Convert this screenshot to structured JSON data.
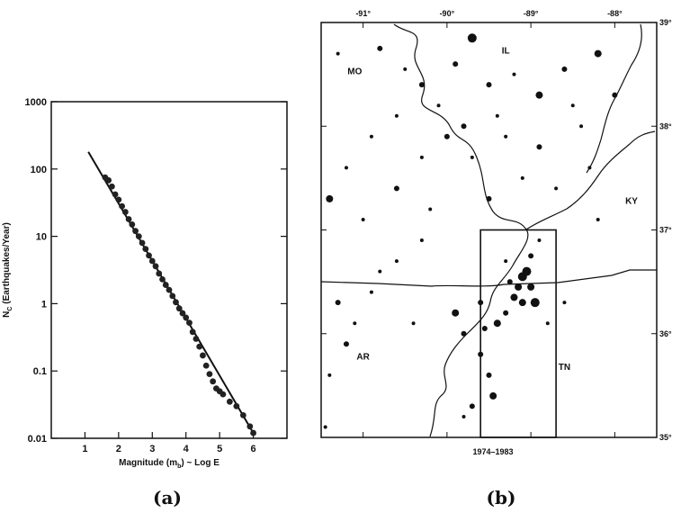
{
  "panels": {
    "a_label": "(a)",
    "b_label": "(b)"
  },
  "chart_data": [
    {
      "type": "scatter",
      "panel": "a",
      "xlabel": "Magnitude (m",
      "xlabel_sub": "b",
      "xlabel_suffix": ") ~ Log E",
      "ylabel": "N",
      "ylabel_sub": "C",
      "ylabel_suffix": " (Earthquakes/Year)",
      "xlim": [
        0,
        7
      ],
      "ylim": [
        0.01,
        1000
      ],
      "y_scale": "log",
      "x_ticks": [
        "1",
        "2",
        "3",
        "4",
        "5",
        "6"
      ],
      "y_ticks": [
        "0.01",
        "0.1",
        "1",
        "10",
        "100",
        "1000"
      ],
      "fit_line": {
        "x": [
          1.1,
          6.0
        ],
        "y": [
          180,
          0.012
        ]
      },
      "points": [
        [
          1.6,
          75
        ],
        [
          1.7,
          68
        ],
        [
          1.8,
          55
        ],
        [
          1.9,
          42
        ],
        [
          2.0,
          35
        ],
        [
          2.1,
          28
        ],
        [
          2.2,
          23
        ],
        [
          2.3,
          18
        ],
        [
          2.4,
          15
        ],
        [
          2.5,
          12
        ],
        [
          2.6,
          10
        ],
        [
          2.7,
          8
        ],
        [
          2.8,
          6.5
        ],
        [
          2.9,
          5.2
        ],
        [
          3.0,
          4.3
        ],
        [
          3.1,
          3.6
        ],
        [
          3.2,
          2.8
        ],
        [
          3.3,
          2.3
        ],
        [
          3.4,
          1.9
        ],
        [
          3.5,
          1.6
        ],
        [
          3.6,
          1.3
        ],
        [
          3.7,
          1.05
        ],
        [
          3.8,
          0.85
        ],
        [
          3.9,
          0.72
        ],
        [
          4.0,
          0.62
        ],
        [
          4.1,
          0.52
        ],
        [
          4.2,
          0.38
        ],
        [
          4.3,
          0.3
        ],
        [
          4.4,
          0.23
        ],
        [
          4.5,
          0.17
        ],
        [
          4.6,
          0.12
        ],
        [
          4.7,
          0.09
        ],
        [
          4.8,
          0.07
        ],
        [
          4.9,
          0.055
        ],
        [
          5.0,
          0.05
        ],
        [
          5.1,
          0.045
        ],
        [
          5.3,
          0.035
        ],
        [
          5.5,
          0.03
        ],
        [
          5.7,
          0.022
        ],
        [
          5.9,
          0.015
        ],
        [
          6.0,
          0.012
        ]
      ]
    },
    {
      "type": "scatter",
      "panel": "b",
      "caption": "1974–1983",
      "x_ticks": [
        "-91°",
        "-90°",
        "-89°",
        "-88°"
      ],
      "y_ticks": [
        "39°",
        "38°",
        "37°",
        "36°",
        "35°"
      ],
      "xlim": [
        -91.5,
        -87.5
      ],
      "ylim": [
        35,
        39
      ],
      "state_labels": [
        {
          "text": "MO",
          "lon": -91.1,
          "lat": 38.5
        },
        {
          "text": "IL",
          "lon": -89.3,
          "lat": 38.7
        },
        {
          "text": "KY",
          "lon": -87.8,
          "lat": 37.25
        },
        {
          "text": "AR",
          "lon": -91.0,
          "lat": 35.75
        },
        {
          "text": "TN",
          "lon": -88.6,
          "lat": 35.65
        }
      ],
      "inset_box": {
        "lon": [
          -89.6,
          -88.7
        ],
        "lat": [
          35.0,
          37.0
        ]
      },
      "earthquakes": [
        [
          -91.3,
          38.7,
          2
        ],
        [
          -90.8,
          38.75,
          3
        ],
        [
          -90.5,
          38.55,
          2
        ],
        [
          -90.3,
          38.4,
          3
        ],
        [
          -90.1,
          38.2,
          2
        ],
        [
          -89.7,
          38.85,
          5
        ],
        [
          -89.5,
          38.4,
          3
        ],
        [
          -89.2,
          38.5,
          2
        ],
        [
          -88.9,
          38.3,
          4
        ],
        [
          -88.6,
          38.55,
          3
        ],
        [
          -88.4,
          38.0,
          2
        ],
        [
          -88.2,
          38.7,
          4
        ],
        [
          -88.5,
          38.2,
          2
        ],
        [
          -89.9,
          38.6,
          3
        ],
        [
          -90.6,
          38.1,
          2
        ],
        [
          -90.9,
          37.9,
          2
        ],
        [
          -91.2,
          37.6,
          2
        ],
        [
          -91.4,
          37.3,
          4
        ],
        [
          -91.0,
          37.1,
          2
        ],
        [
          -90.6,
          37.4,
          3
        ],
        [
          -90.3,
          37.7,
          2
        ],
        [
          -90.0,
          37.9,
          3
        ],
        [
          -89.7,
          37.7,
          2
        ],
        [
          -89.5,
          37.3,
          3
        ],
        [
          -89.3,
          37.9,
          2
        ],
        [
          -89.1,
          37.5,
          2
        ],
        [
          -88.9,
          37.8,
          3
        ],
        [
          -88.7,
          37.4,
          2
        ],
        [
          -88.3,
          37.6,
          2
        ],
        [
          -89.8,
          38.0,
          3
        ],
        [
          -90.2,
          37.2,
          2
        ],
        [
          -90.8,
          36.6,
          2
        ],
        [
          -91.3,
          36.3,
          3
        ],
        [
          -91.1,
          36.1,
          2
        ],
        [
          -91.2,
          35.9,
          3
        ],
        [
          -91.4,
          35.6,
          2
        ],
        [
          -90.9,
          36.4,
          2
        ],
        [
          -90.6,
          36.7,
          2
        ],
        [
          -90.3,
          36.9,
          2
        ],
        [
          -89.9,
          36.2,
          4
        ],
        [
          -89.8,
          36.0,
          3
        ],
        [
          -89.6,
          35.8,
          3
        ],
        [
          -89.5,
          35.6,
          3
        ],
        [
          -89.45,
          35.4,
          4
        ],
        [
          -89.7,
          35.3,
          3
        ],
        [
          -89.4,
          36.1,
          4
        ],
        [
          -89.3,
          36.2,
          3
        ],
        [
          -89.2,
          36.35,
          4
        ],
        [
          -89.15,
          36.45,
          4
        ],
        [
          -89.1,
          36.55,
          5
        ],
        [
          -89.05,
          36.6,
          5
        ],
        [
          -89.0,
          36.45,
          4
        ],
        [
          -88.95,
          36.3,
          5
        ],
        [
          -89.1,
          36.3,
          4
        ],
        [
          -89.25,
          36.5,
          3
        ],
        [
          -89.0,
          36.75,
          3
        ],
        [
          -88.9,
          36.9,
          2
        ],
        [
          -89.3,
          36.7,
          2
        ],
        [
          -89.6,
          36.3,
          3
        ],
        [
          -89.55,
          36.05,
          3
        ],
        [
          -88.8,
          36.1,
          2
        ],
        [
          -88.6,
          36.3,
          2
        ],
        [
          -89.8,
          35.2,
          2
        ],
        [
          -91.45,
          35.1,
          2
        ],
        [
          -90.4,
          36.1,
          2
        ],
        [
          -88.2,
          37.1,
          2
        ],
        [
          -88.0,
          38.3,
          3
        ],
        [
          -89.4,
          38.1,
          2
        ]
      ]
    }
  ]
}
